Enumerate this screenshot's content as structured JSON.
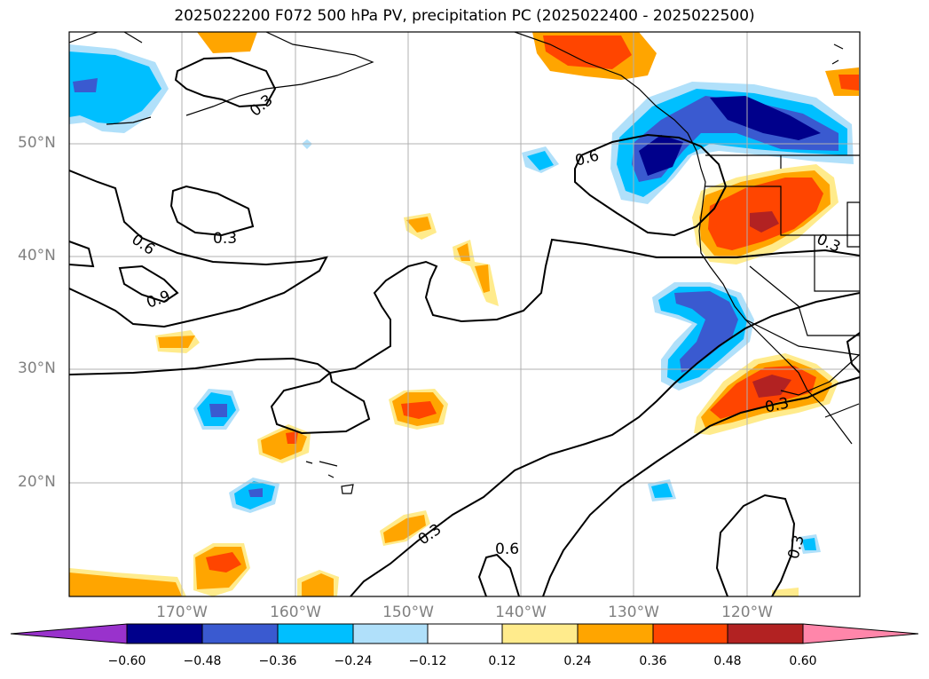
{
  "title": "2025022200 F072 500 hPa PV, precipitation PC (2025022400 - 2025022500)",
  "lat_labels": [
    "50°N",
    "40°N",
    "30°N",
    "20°N"
  ],
  "lon_labels": [
    "170°W",
    "160°W",
    "150°W",
    "140°W",
    "130°W",
    "120°W"
  ],
  "contour_labels": [
    "0.3",
    "0.6",
    "0.3",
    "0.9",
    "0.6",
    "0.3",
    "0.6",
    "0.3",
    "0.3",
    "0.3"
  ],
  "colorbar": {
    "tick_labels": [
      "−0.60",
      "−0.48",
      "−0.36",
      "−0.24",
      "−0.12",
      "0.12",
      "0.24",
      "0.36",
      "0.48",
      "0.60"
    ],
    "colors": [
      "#9932cc",
      "#00008b",
      "#3a5ad0",
      "#00bfff",
      "#b0e0fa",
      "#ffffff",
      "#ffeb8c",
      "#ffa500",
      "#ff4500",
      "#b22222",
      "#ff86aa"
    ]
  },
  "map_extent": {
    "lon": [
      "180°W",
      "110°W"
    ],
    "lat": [
      "10°N",
      "60°N"
    ]
  }
}
